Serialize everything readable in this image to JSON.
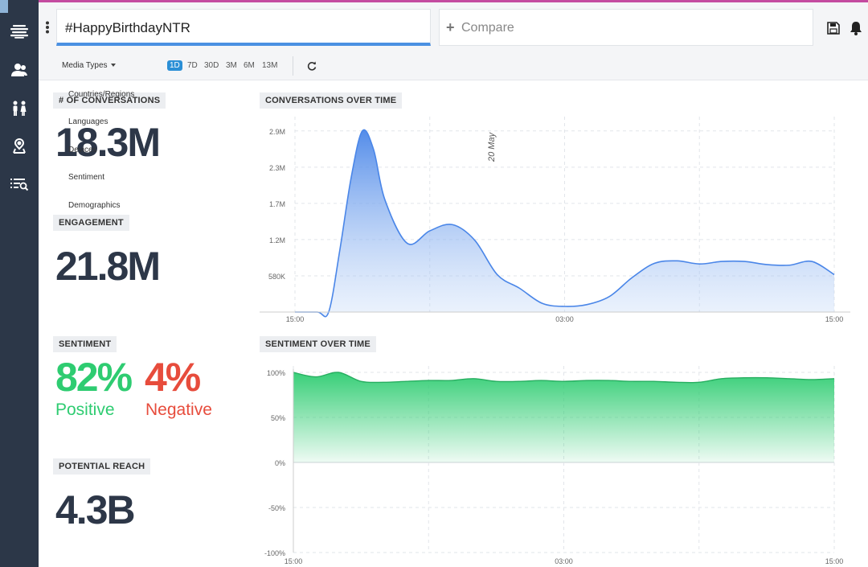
{
  "search": {
    "value": "#HappyBirthdayNTR"
  },
  "compare": {
    "label": "Compare"
  },
  "filters": {
    "media_types": "Media Types",
    "ranges": [
      "1D",
      "7D",
      "30D",
      "3M",
      "6M",
      "13M"
    ],
    "active_range": "1D",
    "menu": [
      "Countries/Regions",
      "Languages",
      "Devices",
      "Sentiment",
      "Demographics"
    ]
  },
  "metrics": {
    "conversations": {
      "label": "# OF CONVERSATIONS",
      "value": "18.3M"
    },
    "engagement": {
      "label": "ENGAGEMENT",
      "value": "21.8M"
    },
    "sentiment": {
      "label": "SENTIMENT",
      "positive_value": "82%",
      "positive_label": "Positive",
      "negative_value": "4%",
      "negative_label": "Negative"
    },
    "reach": {
      "label": "POTENTIAL REACH",
      "value": "4.3B"
    }
  },
  "colors": {
    "positive": "#2ecc71",
    "negative": "#e74c3c",
    "accent": "#2b8fd6",
    "sidebar": "#2c3748"
  },
  "chart_data": [
    {
      "type": "area",
      "title": "CONVERSATIONS OVER TIME",
      "annotation": "20 May",
      "x_ticks": [
        "15:00",
        "03:00",
        "15:00"
      ],
      "y_ticks": [
        "580K",
        "1.2M",
        "1.7M",
        "2.3M",
        "2.9M"
      ],
      "ylim": [
        0,
        3000000
      ],
      "grid": true,
      "x": [
        0,
        1,
        1.5,
        2,
        2.5,
        3,
        3.5,
        4,
        5,
        6,
        7,
        8,
        9,
        10,
        11,
        12,
        13,
        14,
        15,
        16,
        17,
        18,
        19,
        20,
        21,
        22,
        23,
        24
      ],
      "values": [
        0,
        0,
        0,
        1000000,
        2150000,
        2900000,
        2600000,
        1800000,
        1100000,
        1300000,
        1400000,
        1150000,
        600000,
        380000,
        140000,
        90000,
        120000,
        250000,
        550000,
        780000,
        820000,
        770000,
        810000,
        810000,
        760000,
        750000,
        810000,
        600000
      ]
    },
    {
      "type": "area",
      "title": "SENTIMENT OVER TIME",
      "x_ticks": [
        "15:00",
        "03:00",
        "15:00"
      ],
      "y_ticks": [
        "100%",
        "50%",
        "0%",
        "-50%",
        "-100%"
      ],
      "ylim": [
        -100,
        100
      ],
      "grid": true,
      "x": [
        0,
        1,
        2,
        3,
        4,
        5,
        6,
        7,
        8,
        9,
        10,
        11,
        12,
        13,
        14,
        15,
        16,
        17,
        18,
        19,
        20,
        21,
        22,
        23,
        24
      ],
      "values": [
        100,
        95,
        100,
        90,
        89,
        90,
        91,
        91,
        93,
        90,
        90,
        91,
        90,
        91,
        91,
        90,
        90,
        89,
        89,
        93,
        94,
        94,
        93,
        92,
        93
      ]
    }
  ]
}
